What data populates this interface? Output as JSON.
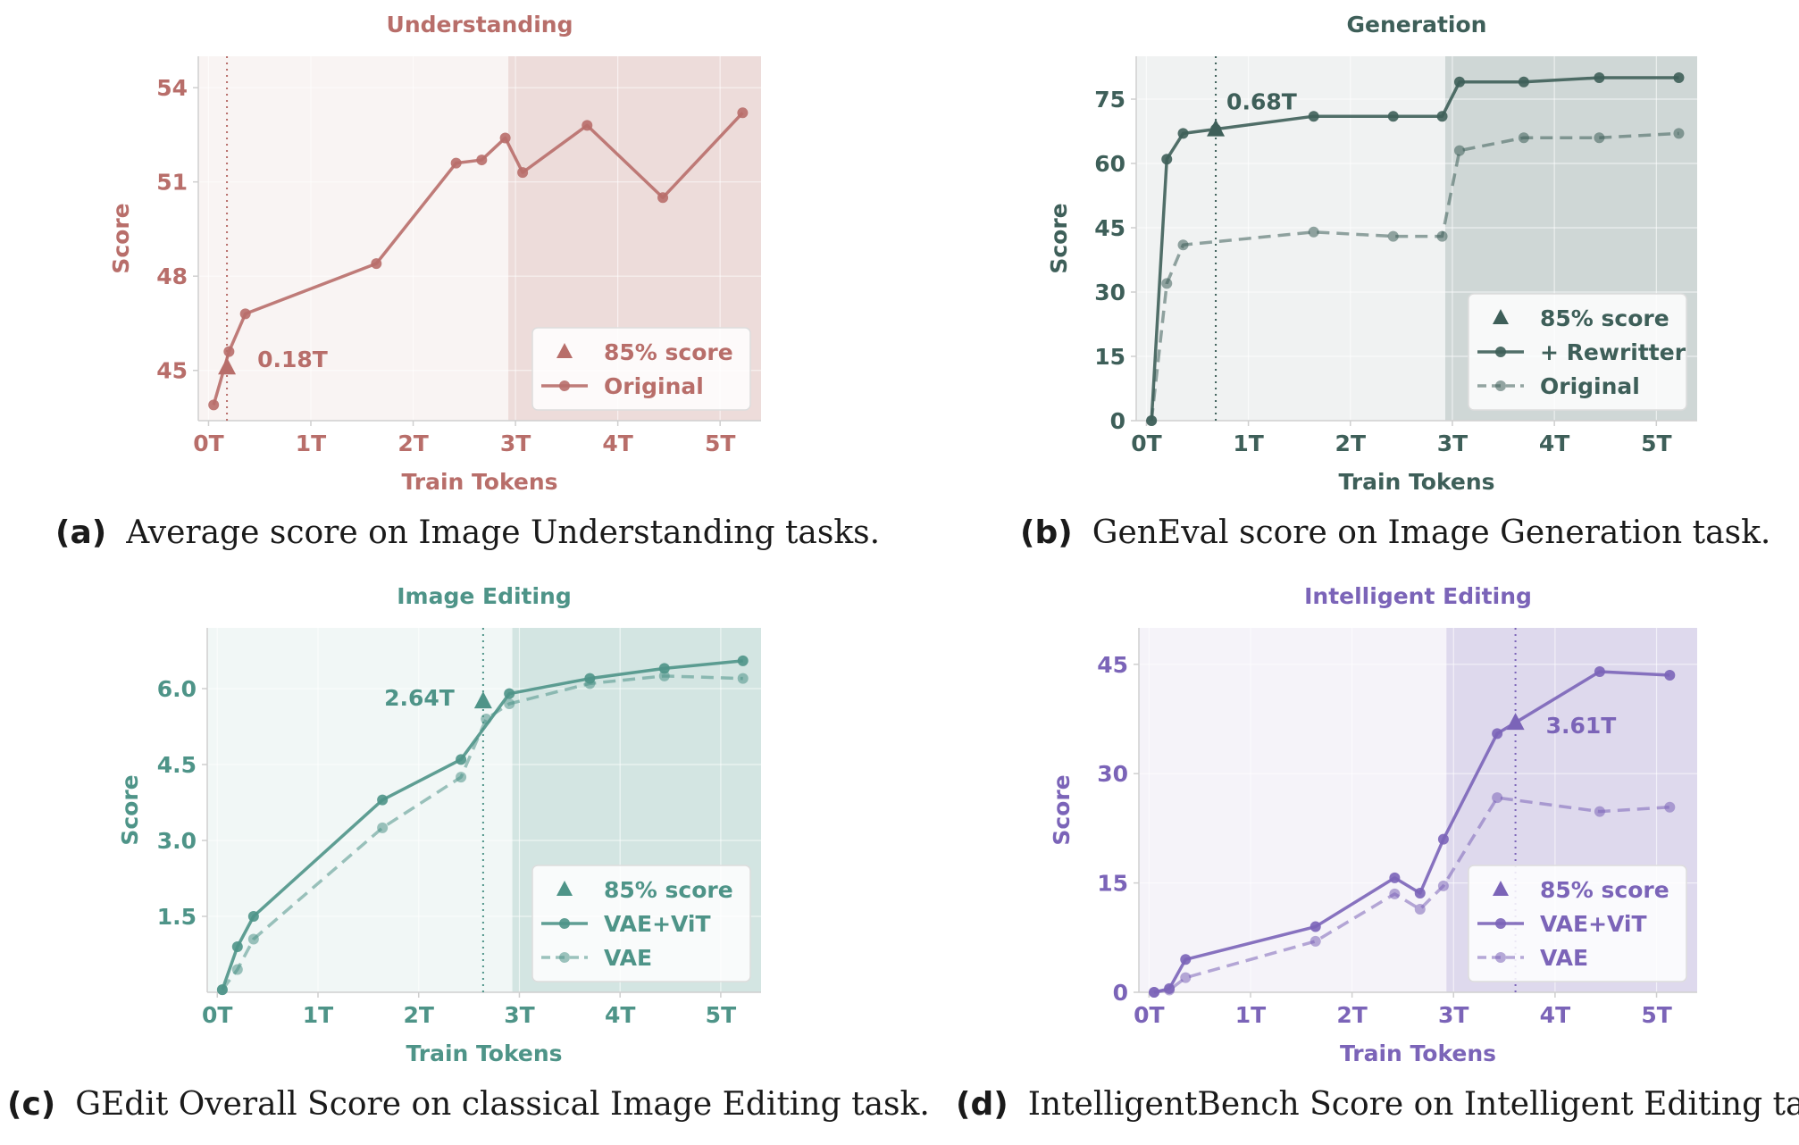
{
  "captions": [
    {
      "letter": "(a)",
      "text": "Average score on Image Understanding tasks."
    },
    {
      "letter": "(b)",
      "text": "GenEval score on Image Generation task."
    },
    {
      "letter": "(c)",
      "text": "GEdit Overall Score on classical Image Editing task."
    },
    {
      "letter": "(d)",
      "text": "IntelligentBench Score on Intelligent Editing task."
    }
  ],
  "chart_data": [
    {
      "type": "line",
      "title": "Understanding",
      "xlabel": "Train Tokens",
      "ylabel": "Score",
      "color": "#b86e6a",
      "xlim": [
        -0.1,
        5.4
      ],
      "ylim": [
        43.4,
        55.0
      ],
      "xticks": [
        0,
        1,
        2,
        3,
        4,
        5
      ],
      "xtick_labels": [
        "0T",
        "1T",
        "2T",
        "3T",
        "4T",
        "5T"
      ],
      "yticks": [
        45,
        48,
        51,
        54
      ],
      "ytick_labels": [
        "45",
        "48",
        "51",
        "54"
      ],
      "shade_start": 2.93,
      "grid": true,
      "legend_position": "bottom-right",
      "marker_label": "0.18T",
      "series": [
        {
          "name": "Original",
          "style": "solid",
          "x": [
            0.05,
            0.2,
            0.36,
            1.64,
            2.42,
            2.67,
            2.9,
            3.07,
            3.7,
            4.44,
            5.22
          ],
          "y": [
            43.9,
            45.6,
            46.8,
            48.4,
            51.6,
            51.7,
            52.4,
            51.3,
            52.8,
            50.5,
            53.2
          ]
        }
      ],
      "highlight": {
        "name": "85% score",
        "x": 0.18,
        "y": 45.1
      },
      "legend": [
        "85% score",
        "Original"
      ]
    },
    {
      "type": "line",
      "title": "Generation",
      "xlabel": "Train Tokens",
      "ylabel": "Score",
      "color": "#3e5f59",
      "xlim": [
        -0.1,
        5.4
      ],
      "ylim": [
        0,
        85
      ],
      "xticks": [
        0,
        1,
        2,
        3,
        4,
        5
      ],
      "xtick_labels": [
        "0T",
        "1T",
        "2T",
        "3T",
        "4T",
        "5T"
      ],
      "yticks": [
        0,
        15,
        30,
        45,
        60,
        75
      ],
      "ytick_labels": [
        "0",
        "15",
        "30",
        "45",
        "60",
        "75"
      ],
      "shade_start": 2.93,
      "grid": true,
      "legend_position": "bottom-right",
      "marker_label": "0.68T",
      "series": [
        {
          "name": "+ Rewritter",
          "style": "solid",
          "x": [
            0.05,
            0.2,
            0.36,
            0.68,
            1.64,
            2.42,
            2.9,
            3.07,
            3.7,
            4.44,
            5.22
          ],
          "y": [
            0,
            61,
            67,
            68,
            71,
            71,
            71,
            79,
            79,
            80,
            80
          ]
        },
        {
          "name": "Original",
          "style": "dashed",
          "x": [
            0.05,
            0.2,
            0.36,
            1.64,
            2.42,
            2.9,
            3.07,
            3.7,
            4.44,
            5.22
          ],
          "y": [
            0,
            32,
            41,
            44,
            43,
            43,
            63,
            66,
            66,
            67
          ]
        }
      ],
      "highlight": {
        "name": "85% score",
        "x": 0.68,
        "y": 68
      },
      "legend": [
        "85% score",
        "+ Rewritter",
        "Original"
      ]
    },
    {
      "type": "line",
      "title": "Image Editing",
      "xlabel": "Train Tokens",
      "ylabel": "Score",
      "color": "#4e9488",
      "xlim": [
        -0.1,
        5.4
      ],
      "ylim": [
        0,
        7.2
      ],
      "xticks": [
        0,
        1,
        2,
        3,
        4,
        5
      ],
      "xtick_labels": [
        "0T",
        "1T",
        "2T",
        "3T",
        "4T",
        "5T"
      ],
      "yticks": [
        1.5,
        3.0,
        4.5,
        6.0
      ],
      "ytick_labels": [
        "1.5",
        "3.0",
        "4.5",
        "6.0"
      ],
      "shade_start": 2.93,
      "grid": true,
      "legend_position": "bottom-right",
      "marker_label": "2.64T",
      "series": [
        {
          "name": "VAE+ViT",
          "style": "solid",
          "x": [
            0.05,
            0.2,
            0.36,
            1.64,
            2.42,
            2.9,
            3.7,
            4.44,
            5.22
          ],
          "y": [
            0.05,
            0.9,
            1.5,
            3.8,
            4.6,
            5.9,
            6.2,
            6.4,
            6.55
          ]
        },
        {
          "name": "VAE",
          "style": "dashed",
          "x": [
            0.05,
            0.2,
            0.36,
            1.64,
            2.42,
            2.67,
            2.9,
            3.7,
            4.44,
            5.22
          ],
          "y": [
            0.05,
            0.45,
            1.05,
            3.25,
            4.25,
            5.4,
            5.7,
            6.1,
            6.25,
            6.2
          ]
        }
      ],
      "highlight": {
        "name": "85% score",
        "x": 2.64,
        "y": 5.75
      },
      "legend": [
        "85% score",
        "VAE+ViT",
        "VAE"
      ]
    },
    {
      "type": "line",
      "title": "Intelligent Editing",
      "xlabel": "Train Tokens",
      "ylabel": "Score",
      "color": "#7b64b8",
      "xlim": [
        -0.1,
        5.4
      ],
      "ylim": [
        0,
        50
      ],
      "xticks": [
        0,
        1,
        2,
        3,
        4,
        5
      ],
      "xtick_labels": [
        "0T",
        "1T",
        "2T",
        "3T",
        "4T",
        "5T"
      ],
      "yticks": [
        0,
        15,
        30,
        45
      ],
      "ytick_labels": [
        "0",
        "15",
        "30",
        "45"
      ],
      "shade_start": 2.93,
      "grid": true,
      "legend_position": "bottom-right",
      "marker_label": "3.61T",
      "series": [
        {
          "name": "VAE+ViT",
          "style": "solid",
          "x": [
            0.05,
            0.2,
            0.36,
            1.64,
            2.42,
            2.67,
            2.9,
            3.43,
            4.44,
            5.13
          ],
          "y": [
            0,
            0.5,
            4.5,
            9,
            15.7,
            13.6,
            21,
            35.5,
            44,
            43.5
          ]
        },
        {
          "name": "VAE",
          "style": "dashed",
          "x": [
            0.05,
            0.2,
            0.36,
            1.64,
            2.42,
            2.67,
            2.9,
            3.43,
            4.44,
            5.13
          ],
          "y": [
            0,
            0.3,
            2,
            7,
            13.5,
            11.4,
            14.6,
            26.7,
            24.8,
            25.4
          ]
        }
      ],
      "highlight": {
        "name": "85% score",
        "x": 3.61,
        "y": 37
      },
      "legend": [
        "85% score",
        "VAE+ViT",
        "VAE"
      ]
    }
  ]
}
